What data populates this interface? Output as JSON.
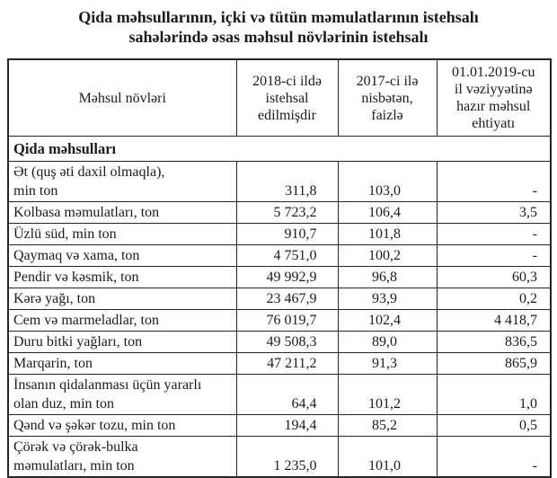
{
  "title": "Qida məhsullarının, içki və tütün məmulatlarının istehsalı\nsahələrində əsas məhsul növlərinin istehsalı",
  "colors": {
    "background": "#ffffff",
    "text": "#1b1b1b",
    "table_border": "#262626"
  },
  "table": {
    "columns": [
      "Məhsul növləri",
      "2018-ci ildə\nistehsal\nedilmişdir",
      "2017-ci ilə\nnisbətən,\nfaizlə",
      "01.01.2019-cu\nil vəziyyətinə\nhazır məhsul\nehtiyatı"
    ],
    "section": "Qida məhsulları",
    "rows": [
      {
        "name": "Ət (quş əti daxil olmaqla),\nmin ton",
        "produced": "311,8",
        "percent": "103,0",
        "stock": "-"
      },
      {
        "name": "Kolbasa məmulatları, ton",
        "produced": "5 723,2",
        "percent": "106,4",
        "stock": "3,5"
      },
      {
        "name": "Üzlü süd, min ton",
        "produced": "910,7",
        "percent": "101,8",
        "stock": "-"
      },
      {
        "name": "Qaymaq və xama, ton",
        "produced": "4 751,0",
        "percent": "100,2",
        "stock": "-"
      },
      {
        "name": "Pendir və kəsmik, ton",
        "produced": "49 992,9",
        "percent": "96,8",
        "stock": "60,3"
      },
      {
        "name": "Kərə yağı, ton",
        "produced": "23 467,9",
        "percent": "93,9",
        "stock": "0,2"
      },
      {
        "name": "Cem və marmeladlar, ton",
        "produced": "76 019,7",
        "percent": "102,4",
        "stock": "4 418,7"
      },
      {
        "name": "Duru bitki yağları, ton",
        "produced": "49 508,3",
        "percent": "89,0",
        "stock": "836,5"
      },
      {
        "name": "Marqarin, ton",
        "produced": "47 211,2",
        "percent": "91,3",
        "stock": "865,9"
      },
      {
        "name": "İnsanın qidalanması üçün yararlı\nolan duz, min ton",
        "produced": "64,4",
        "percent": "101,2",
        "stock": "1,0"
      },
      {
        "name": "Qənd və şəkər tozu, min ton",
        "produced": "194,4",
        "percent": "85,2",
        "stock": "0,5"
      },
      {
        "name": "Çörək və çörək-bulka\nməmulatları, min ton",
        "produced": "1 235,0",
        "percent": "101,0",
        "stock": "-"
      }
    ]
  }
}
